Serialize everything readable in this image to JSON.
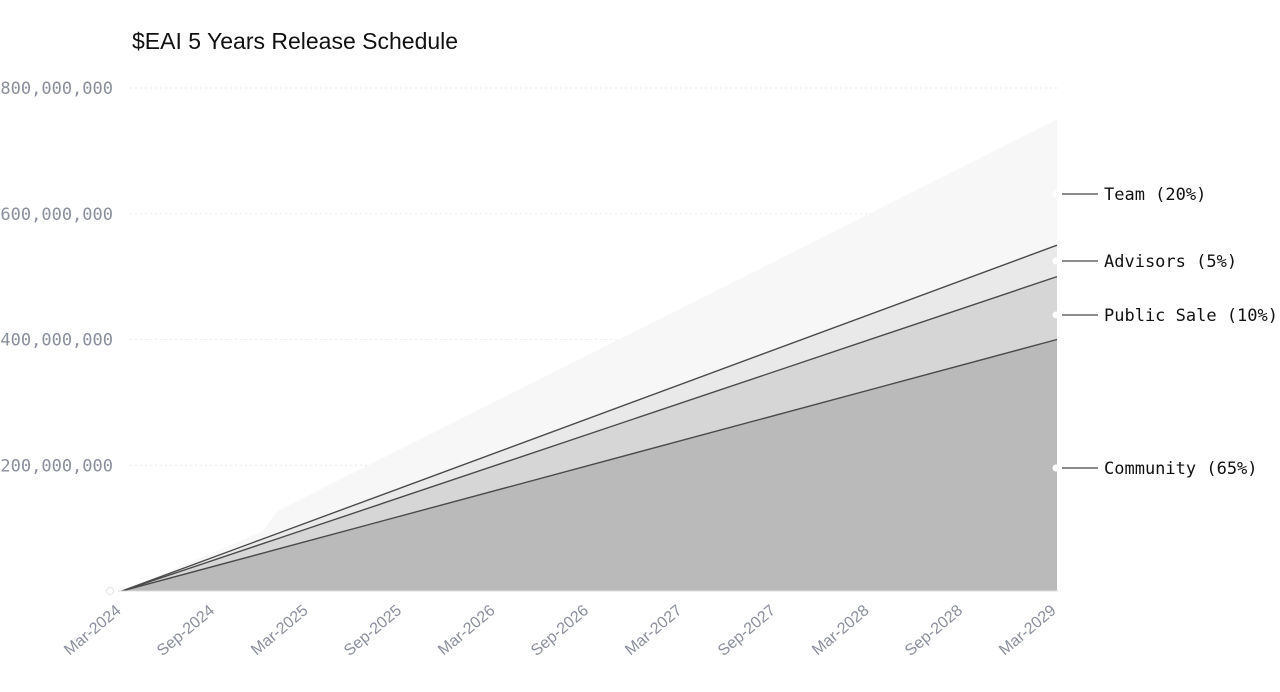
{
  "chart_data": {
    "type": "area",
    "stacked": true,
    "title": "$EAI 5 Years Release Schedule",
    "xlabel": "",
    "ylabel": "",
    "ylim": [
      0,
      800000000
    ],
    "y_ticks": [
      200000000,
      400000000,
      600000000,
      800000000
    ],
    "y_tick_labels": [
      "200,000,000",
      "400,000,000",
      "600,000,000",
      "800,000,000"
    ],
    "x_ticks": [
      "Mar-2024",
      "Sep-2024",
      "Mar-2025",
      "Sep-2025",
      "Mar-2026",
      "Sep-2026",
      "Mar-2027",
      "Sep-2027",
      "Mar-2028",
      "Sep-2028",
      "Mar-2029"
    ],
    "x_range": [
      "Mar-2024",
      "Mar-2029"
    ],
    "grid": true,
    "legend": "right, labels at series ends",
    "series": [
      {
        "name": "Community (65%)",
        "color": "#bababa",
        "points": [
          [
            "Mar-2024",
            0
          ],
          [
            "Mar-2029",
            400000000
          ]
        ]
      },
      {
        "name": "Public Sale (10%)",
        "color": "#d6d6d6",
        "points": [
          [
            "Mar-2024",
            0
          ],
          [
            "Mar-2029",
            100000000
          ]
        ]
      },
      {
        "name": "Advisors (5%)",
        "color": "#e9e9e9",
        "points": [
          [
            "Mar-2024",
            0
          ],
          [
            "Mar-2029",
            50000000
          ]
        ]
      },
      {
        "name": "Team (20%)",
        "color": "#f7f7f7",
        "points": [
          [
            "Mar-2024",
            0
          ],
          [
            "Dec-2024",
            12000000
          ],
          [
            "Jan-2025",
            36000000
          ],
          [
            "Mar-2029",
            200000000
          ]
        ]
      }
    ]
  }
}
